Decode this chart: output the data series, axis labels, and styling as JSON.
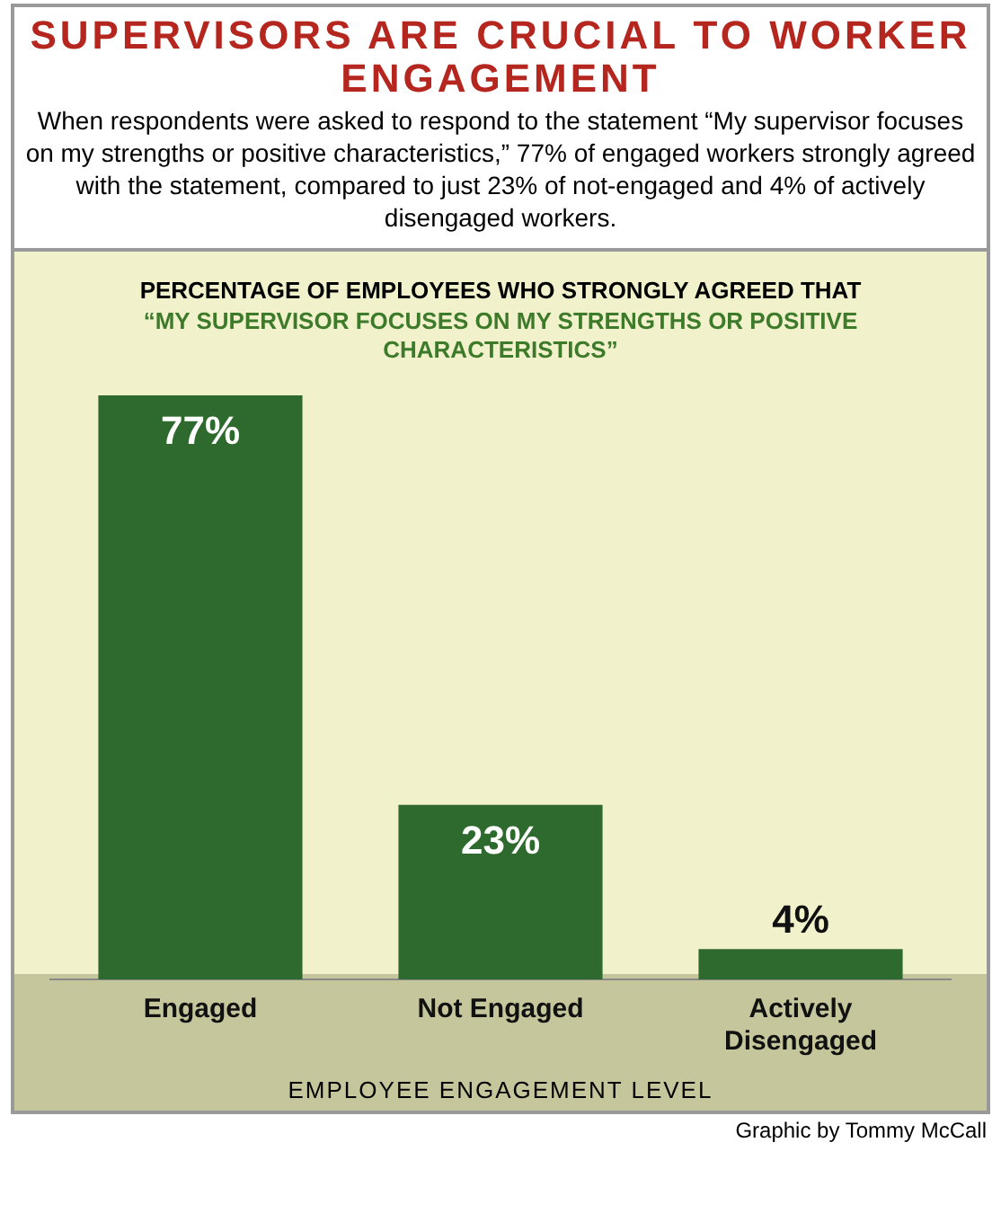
{
  "chart_data": {
    "type": "bar",
    "title": "SUPERVISORS ARE CRUCIAL TO WORKER ENGAGEMENT",
    "subtitle": "When respondents were asked to respond to the statement “My supervisor focuses on my strengths or positive characteristics,” 77% of engaged workers strongly agreed with the statement, compared to just 23% of not-engaged and 4% of actively disengaged workers.",
    "xlabel": "EMPLOYEE ENGAGEMENT LEVEL",
    "annotations": [
      "PERCENTAGE OF EMPLOYEES WHO STRONGLY AGREED THAT",
      "“MY SUPERVISOR FOCUSES ON MY STRENGTHS OR POSITIVE CHARACTERISTICS”",
      "Graphic by Tommy McCall"
    ],
    "categories": [
      "Engaged",
      "Not Engaged",
      "Actively Disengaged"
    ],
    "values": [
      77,
      23,
      4
    ],
    "value_labels": [
      "77%",
      "23%",
      "4%"
    ],
    "color": "#2e6a2e",
    "grid": false,
    "legend": false
  }
}
